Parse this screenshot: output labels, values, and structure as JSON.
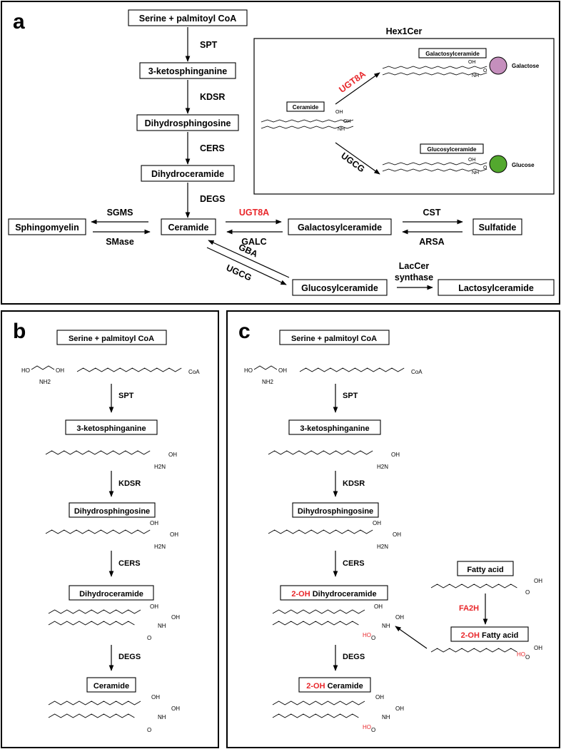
{
  "panel_a": {
    "letter": "a",
    "nodes": {
      "serine": "Serine + palmitoyl CoA",
      "ketosphinganine": "3-ketosphinganine",
      "dihydrosphingosine": "Dihydrosphingosine",
      "dihydroceramide": "Dihydroceramide",
      "ceramide": "Ceramide",
      "sphingomyelin": "Sphingomyelin",
      "galactosylceramide": "Galactosylceramide",
      "sulfatide": "Sulfatide",
      "glucosylceramide": "Glucosylceramide",
      "lactosylceramide": "Lactosylceramide"
    },
    "enzymes": {
      "spt": "SPT",
      "kdsr": "KDSR",
      "cers": "CERS",
      "degs": "DEGS",
      "sgms": "SGMS",
      "smase": "SMase",
      "ugt8a": "UGT8A",
      "galc": "GALC",
      "cst": "CST",
      "arsa": "ARSA",
      "gba": "GBA",
      "ugcg": "UGCG",
      "lacc_1": "LacCer",
      "lacc_2": "synthase"
    },
    "inset": {
      "title": "Hex1Cer",
      "ceramide": "Ceramide",
      "galcer": "Galactosylceramide",
      "glccer": "Glucosylceramide",
      "ugt8a": "UGT8A",
      "ugcg": "UGCG",
      "galactose": "Galactose",
      "glucose": "Glucose",
      "oh": "OH",
      "nh": "NH",
      "o": "O",
      "galactose_color": "#c58fbd",
      "glucose_color": "#53a82e"
    }
  },
  "panel_b": {
    "letter": "b",
    "serine": "Serine + palmitoyl CoA",
    "spt": "SPT",
    "ketosphinganine": "3-ketosphinganine",
    "kdsr": "KDSR",
    "dihydrosphingosine": "Dihydrosphingosine",
    "cers": "CERS",
    "dihydroceramide": "Dihydroceramide",
    "degs": "DEGS",
    "ceramide": "Ceramide",
    "chem": {
      "ho": "HO",
      "oh": "OH",
      "nh2": "NH2",
      "coa": "CoA",
      "o": "O",
      "h2n": "H2N",
      "nh": "NH"
    }
  },
  "panel_c": {
    "letter": "c",
    "serine": "Serine + palmitoyl CoA",
    "spt": "SPT",
    "ketosphinganine": "3-ketosphinganine",
    "kdsr": "KDSR",
    "dihydrosphingosine": "Dihydrosphingosine",
    "cers": "CERS",
    "oh_prefix": "2-OH",
    "dihydroceramide": " Dihydroceramide",
    "degs": "DEGS",
    "ceramide": " Ceramide",
    "fatty_acid": "Fatty acid",
    "fa2h": "FA2H",
    "oh_fatty_acid": " Fatty acid",
    "chem": {
      "ho": "HO",
      "oh": "OH",
      "nh2": "NH2",
      "coa": "CoA",
      "o": "O",
      "h2n": "H2N",
      "nh": "NH"
    }
  },
  "colors": {
    "red": "#e8262a"
  }
}
